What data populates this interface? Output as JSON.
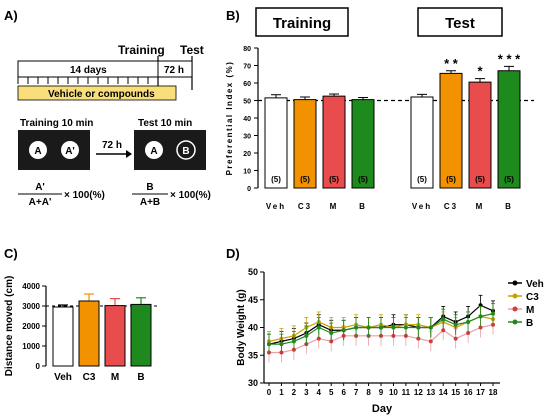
{
  "panels": {
    "A": {
      "label": "A)",
      "training": "Training",
      "test": "Test",
      "days": "14 days",
      "delay": "72 h",
      "treatment": "Vehicle or compounds",
      "training_box": "Training 10 min",
      "test_box": "Test 10 min",
      "arrow_delay": "72 h",
      "objects_training": [
        "A",
        "A'"
      ],
      "objects_test": [
        "A",
        "B"
      ],
      "formula_train_num": "A'",
      "formula_train_den": "A+A'",
      "formula_test_num": "B",
      "formula_test_den": "A+B",
      "formula_mult": "× 100(%)"
    },
    "B": {
      "label": "B)",
      "group_training": "Training",
      "group_test": "Test"
    },
    "C": {
      "label": "C)"
    },
    "D": {
      "label": "D)"
    }
  },
  "colors": {
    "Veh": "#ffffff",
    "C3": "#f39200",
    "M": "#e84c4c",
    "B": "#1e8a1e",
    "Veh_line": "#000000",
    "C3_line": "#c8a000"
  },
  "chart_data": [
    {
      "id": "B",
      "type": "bar",
      "ylabel": "Preferential Index (%)",
      "ylim": [
        0,
        80
      ],
      "yticks": [
        0,
        10,
        20,
        30,
        40,
        50,
        60,
        70,
        80
      ],
      "reference_line": 50,
      "categories": [
        "Veh",
        "C3",
        "M",
        "B",
        "Veh",
        "C3",
        "M",
        "B"
      ],
      "groups": [
        "Training",
        "Training",
        "Training",
        "Training",
        "Test",
        "Test",
        "Test",
        "Test"
      ],
      "values": [
        51.5,
        50.5,
        52.5,
        50.5,
        52,
        65.5,
        60.5,
        67
      ],
      "errors": [
        1.8,
        1.5,
        1.2,
        1.2,
        1.5,
        1.5,
        2.0,
        2.5
      ],
      "n_labels": [
        "(5)",
        "(5)",
        "(5)",
        "(5)",
        "(5)",
        "(5)",
        "(5)",
        "(5)"
      ],
      "significance": [
        "",
        "",
        "",
        "",
        "",
        "* *",
        "*",
        "* * *"
      ]
    },
    {
      "id": "C",
      "type": "bar",
      "ylabel": "Distance moved (cm)",
      "ylim": [
        0,
        4000
      ],
      "yticks": [
        0,
        1000,
        2000,
        3000,
        4000
      ],
      "reference_line": 3000,
      "categories": [
        "Veh",
        "C3",
        "M",
        "B"
      ],
      "values": [
        2950,
        3250,
        3020,
        3080
      ],
      "errors": [
        100,
        350,
        350,
        330
      ]
    },
    {
      "id": "D",
      "type": "line",
      "xlabel": "Day",
      "ylabel": "Body Weight (g)",
      "ylim": [
        30,
        50
      ],
      "yticks": [
        30,
        35,
        40,
        45,
        50
      ],
      "x": [
        0,
        1,
        2,
        3,
        4,
        5,
        6,
        7,
        8,
        9,
        10,
        11,
        12,
        13,
        14,
        15,
        16,
        17,
        18
      ],
      "series": [
        {
          "name": "Veh",
          "values": [
            37,
            37.5,
            38,
            39,
            40.5,
            39.5,
            39.5,
            40,
            40,
            40,
            40.5,
            40.5,
            40,
            40,
            42,
            41,
            42,
            44,
            43
          ]
        },
        {
          "name": "C3",
          "values": [
            37.5,
            38,
            38.5,
            40,
            41,
            40,
            40,
            40.5,
            40,
            40.5,
            40,
            40.5,
            40.5,
            40,
            41,
            40,
            41,
            42,
            41.5
          ]
        },
        {
          "name": "M",
          "values": [
            35.5,
            35.5,
            36,
            37,
            38,
            37.5,
            38.5,
            38.5,
            38.5,
            38.5,
            38.5,
            38.5,
            38,
            37.5,
            39.5,
            38,
            39,
            40,
            40.5
          ]
        },
        {
          "name": "B",
          "values": [
            37,
            37,
            37.5,
            38.5,
            40,
            39,
            39.5,
            40,
            40,
            40,
            40,
            40,
            40,
            40,
            41.5,
            40.5,
            41,
            42,
            42.5
          ]
        }
      ],
      "error": 1.8
    }
  ]
}
